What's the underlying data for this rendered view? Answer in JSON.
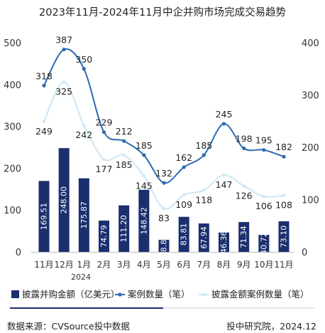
{
  "chart_data": {
    "type": "bar+line",
    "title": "2023年11月-2024年11月中企并购市场完成交易趋势",
    "categories": [
      "11月",
      "12月",
      "1月",
      "2月",
      "3月",
      "4月",
      "5月",
      "6月",
      "7月",
      "8月",
      "9月",
      "10月",
      "11月"
    ],
    "year_label": "2024",
    "left_axis": {
      "ylim": [
        0,
        500
      ],
      "ticks": [
        0,
        100,
        200,
        300,
        400,
        500
      ]
    },
    "right_axis": {
      "ylim": [
        0,
        400
      ],
      "ticks": [
        0,
        100,
        200,
        300,
        400
      ]
    },
    "series": [
      {
        "name": "披露并购金额（亿美元）",
        "type": "bar",
        "axis": "left",
        "color": "#1b2f6e",
        "values": [
          169.51,
          248.0,
          175.87,
          74.79,
          111.2,
          148.42,
          28.87,
          83.81,
          67.94,
          46.36,
          71.34,
          40.72,
          73.1
        ],
        "labels": [
          "169.51",
          "248.00",
          "175.87",
          "74.79",
          "111.20",
          "148.42",
          "28.87",
          "83.81",
          "67.94",
          "46.36",
          "71.34",
          "40.72",
          "73.10"
        ]
      },
      {
        "name": "案例数量（笔）",
        "type": "line",
        "axis": "right",
        "color": "#2b6cb0",
        "values": [
          318,
          387,
          350,
          229,
          212,
          185,
          132,
          162,
          185,
          245,
          198,
          195,
          182
        ]
      },
      {
        "name": "披露金额案例数量（笔）",
        "type": "line",
        "axis": "right",
        "color": "#cfe8f5",
        "values": [
          249,
          325,
          242,
          177,
          185,
          145,
          83,
          109,
          118,
          147,
          126,
          106,
          108
        ]
      }
    ]
  },
  "footer": {
    "source": "数据来源：CVSource投中数据",
    "institute": "投中研究院，2024.12"
  }
}
